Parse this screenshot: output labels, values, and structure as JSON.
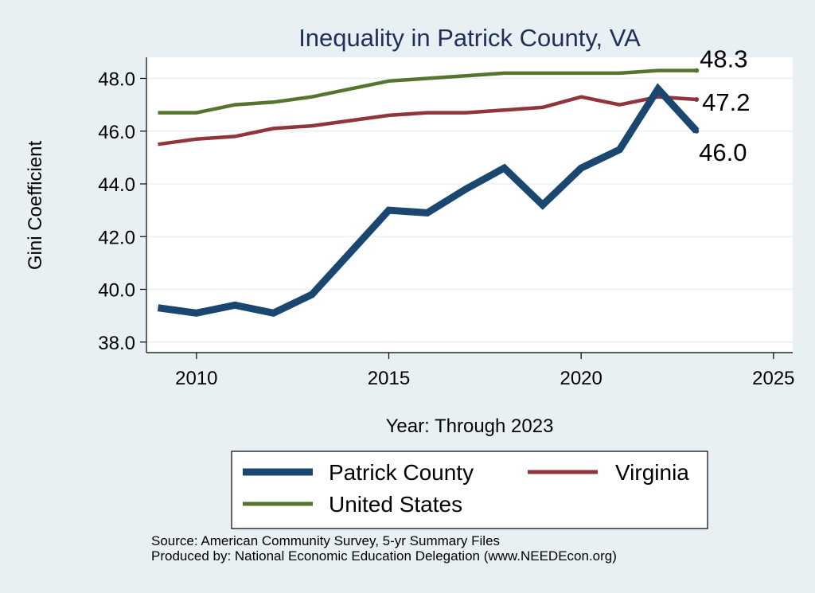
{
  "chart_data": {
    "type": "line",
    "title": "Inequality in Patrick County, VA",
    "xlabel": "Year: Through 2023",
    "ylabel": "Gini Coefficient",
    "xlim": [
      2008.7,
      2025.5
    ],
    "ylim": [
      37.6,
      48.8
    ],
    "xticks": [
      2010,
      2015,
      2020,
      2025
    ],
    "yticks": [
      38,
      40,
      42,
      44,
      46,
      48
    ],
    "ytick_labels": [
      "38.0",
      "40.0",
      "42.0",
      "44.0",
      "46.0",
      "48.0"
    ],
    "grid": true,
    "legend_position": "bottom",
    "x": [
      2009,
      2010,
      2011,
      2012,
      2013,
      2014,
      2015,
      2016,
      2017,
      2018,
      2019,
      2020,
      2021,
      2022,
      2023
    ],
    "series": [
      {
        "name": "Patrick County",
        "color": "#1a476f",
        "values": [
          39.3,
          39.1,
          39.4,
          39.1,
          39.8,
          41.4,
          43.0,
          42.9,
          43.8,
          44.6,
          43.2,
          44.6,
          45.3,
          47.6,
          46.0
        ],
        "end_label": "46.0"
      },
      {
        "name": "Virginia",
        "color": "#90353b",
        "values": [
          45.5,
          45.7,
          45.8,
          46.1,
          46.2,
          46.4,
          46.6,
          46.7,
          46.7,
          46.8,
          46.9,
          47.3,
          47.0,
          47.3,
          47.2
        ],
        "end_label": "47.2"
      },
      {
        "name": "United States",
        "color": "#55752f",
        "values": [
          46.7,
          46.7,
          47.0,
          47.1,
          47.3,
          47.6,
          47.9,
          48.0,
          48.1,
          48.2,
          48.2,
          48.2,
          48.2,
          48.3,
          48.3
        ],
        "end_label": "48.3"
      }
    ],
    "source_lines": [
      "Source: American Community Survey, 5-yr Summary Files",
      "Produced by: National Economic Education Delegation (www.NEEDEcon.org)"
    ]
  }
}
